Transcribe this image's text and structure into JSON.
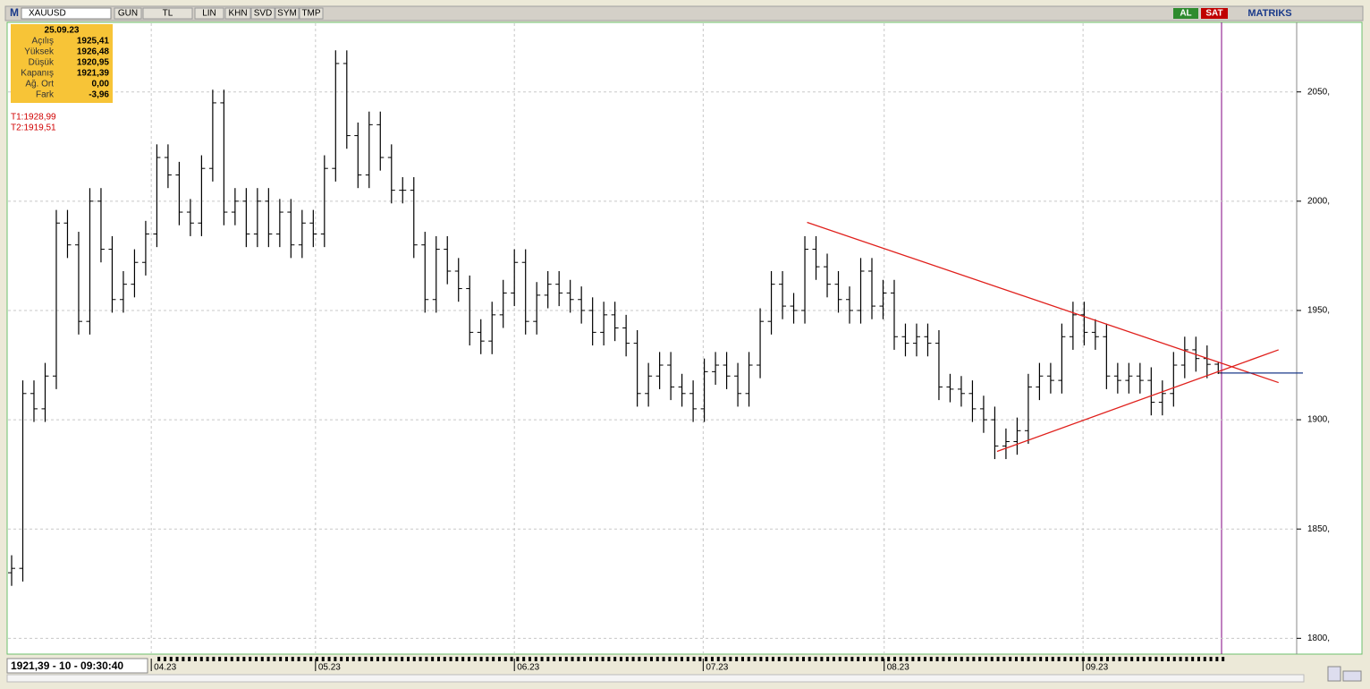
{
  "toolbar": {
    "logo": "M",
    "symbol": "XAUUSD",
    "buttons": [
      "GUN",
      "TL",
      "LIN",
      "KHN",
      "SVD",
      "SYM",
      "TMP"
    ],
    "buy": "AL",
    "sell": "SAT",
    "brand": "MATRIKS"
  },
  "info_box": {
    "date": "25.09.23",
    "rows": [
      {
        "label": "Açılış",
        "value": "1925,41"
      },
      {
        "label": "Yüksek",
        "value": "1926,48"
      },
      {
        "label": "Düşük",
        "value": "1920,95"
      },
      {
        "label": "Kapanış",
        "value": "1921,39"
      },
      {
        "label": "Ağ. Ort",
        "value": "0,00"
      },
      {
        "label": "Fark",
        "value": "-3,96"
      }
    ]
  },
  "trend_labels": [
    "T1:1928,99",
    "T2:1919,51"
  ],
  "status": "1921,39 - 10 - 09:30:40",
  "chart_data": {
    "type": "ohlc",
    "color": "#000000",
    "grid": true,
    "xlim": [
      -0.4,
      115.1
    ],
    "ylim": [
      1794,
      2081
    ],
    "yticks": [
      {
        "value": 1800,
        "label": "1800,"
      },
      {
        "value": 1850,
        "label": "1850,"
      },
      {
        "value": 1900,
        "label": "1900,"
      },
      {
        "value": 1950,
        "label": "1950,"
      },
      {
        "value": 2000,
        "label": "2000,"
      },
      {
        "value": 2050,
        "label": "2050,"
      }
    ],
    "xticks": [
      {
        "value": 12.5,
        "label": "04.23"
      },
      {
        "value": 27.2,
        "label": "05.23"
      },
      {
        "value": 45,
        "label": "06.23"
      },
      {
        "value": 61.9,
        "label": "07.23"
      },
      {
        "value": 78.1,
        "label": "08.23"
      },
      {
        "value": 95.9,
        "label": "09.23"
      }
    ],
    "open": [
      1830,
      1832,
      1912,
      1905,
      1920,
      1990,
      1980,
      1945,
      2000,
      1978,
      1955,
      1962,
      1972,
      1985,
      2020,
      2012,
      1995,
      1990,
      2015,
      2045,
      1995,
      2000,
      1985,
      2000,
      1985,
      1995,
      1980,
      1990,
      1985,
      2015,
      2063,
      2030,
      2012,
      2035,
      2020,
      2005,
      2005,
      1980,
      1955,
      1978,
      1968,
      1960,
      1940,
      1936,
      1948,
      1958,
      1972,
      1945,
      1957,
      1962,
      1958,
      1955,
      1950,
      1940,
      1948,
      1942,
      1935,
      1912,
      1920,
      1925,
      1915,
      1912,
      1905,
      1922,
      1925,
      1920,
      1912,
      1925,
      1945,
      1962,
      1952,
      1950,
      1978,
      1970,
      1962,
      1955,
      1950,
      1968,
      1952,
      1958,
      1938,
      1935,
      1938,
      1935,
      1915,
      1914,
      1912,
      1905,
      1900,
      1888,
      1890,
      1895,
      1915,
      1920,
      1918,
      1938,
      1948,
      1940,
      1938,
      1920,
      1918,
      1920,
      1918,
      1908,
      1912,
      1925,
      1932,
      1928,
      1925.41
    ],
    "high": [
      1838,
      1918,
      1918,
      1926,
      1996,
      1996,
      1986,
      2006,
      2006,
      1984,
      1968,
      1978,
      1991,
      2026,
      2026,
      2018,
      2001,
      2021,
      2051,
      2051,
      2006,
      2006,
      2006,
      2006,
      2001,
      2001,
      1996,
      1996,
      2021,
      2069,
      2069,
      2036,
      2041,
      2041,
      2026,
      2011,
      2011,
      1986,
      1984,
      1984,
      1974,
      1966,
      1946,
      1954,
      1964,
      1978,
      1978,
      1963,
      1968,
      1968,
      1964,
      1961,
      1956,
      1954,
      1954,
      1948,
      1941,
      1926,
      1931,
      1931,
      1921,
      1918,
      1928,
      1931,
      1931,
      1926,
      1931,
      1951,
      1968,
      1968,
      1958,
      1984,
      1984,
      1976,
      1968,
      1961,
      1974,
      1974,
      1964,
      1964,
      1944,
      1944,
      1944,
      1941,
      1921,
      1920,
      1918,
      1911,
      1906,
      1896,
      1901,
      1921,
      1926,
      1926,
      1944,
      1954,
      1954,
      1946,
      1944,
      1926,
      1926,
      1926,
      1924,
      1918,
      1931,
      1938,
      1938,
      1934,
      1926.48
    ],
    "low": [
      1824,
      1826,
      1899,
      1899,
      1914,
      1974,
      1939,
      1939,
      1972,
      1949,
      1949,
      1956,
      1966,
      1979,
      2006,
      1989,
      1984,
      1984,
      2009,
      1989,
      1989,
      1979,
      1979,
      1979,
      1979,
      1974,
      1974,
      1979,
      1979,
      2009,
      2024,
      2006,
      2006,
      2014,
      1999,
      1999,
      1974,
      1949,
      1949,
      1962,
      1954,
      1934,
      1930,
      1930,
      1942,
      1952,
      1939,
      1939,
      1951,
      1952,
      1949,
      1944,
      1934,
      1934,
      1936,
      1929,
      1906,
      1906,
      1914,
      1909,
      1906,
      1899,
      1899,
      1916,
      1914,
      1906,
      1906,
      1919,
      1939,
      1946,
      1944,
      1944,
      1964,
      1956,
      1949,
      1944,
      1944,
      1946,
      1946,
      1932,
      1929,
      1929,
      1929,
      1909,
      1908,
      1906,
      1899,
      1894,
      1882,
      1882,
      1884,
      1889,
      1909,
      1912,
      1912,
      1932,
      1934,
      1932,
      1914,
      1912,
      1912,
      1912,
      1902,
      1902,
      1906,
      1919,
      1922,
      1919,
      1920.95
    ],
    "close": [
      1832,
      1912,
      1905,
      1920,
      1990,
      1980,
      1945,
      2000,
      1978,
      1955,
      1962,
      1972,
      1985,
      2020,
      2012,
      1995,
      1990,
      2015,
      2045,
      1995,
      2000,
      1985,
      2000,
      1985,
      1995,
      1980,
      1990,
      1985,
      2015,
      2063,
      2030,
      2012,
      2035,
      2020,
      2005,
      2005,
      1980,
      1955,
      1978,
      1968,
      1960,
      1940,
      1936,
      1948,
      1958,
      1972,
      1945,
      1957,
      1962,
      1958,
      1955,
      1950,
      1940,
      1948,
      1942,
      1935,
      1912,
      1920,
      1925,
      1915,
      1912,
      1905,
      1922,
      1925,
      1920,
      1912,
      1925,
      1945,
      1962,
      1952,
      1950,
      1978,
      1970,
      1962,
      1955,
      1950,
      1968,
      1952,
      1958,
      1938,
      1935,
      1938,
      1935,
      1915,
      1914,
      1912,
      1905,
      1900,
      1888,
      1890,
      1895,
      1915,
      1920,
      1918,
      1938,
      1948,
      1940,
      1938,
      1920,
      1918,
      1920,
      1918,
      1908,
      1912,
      1925,
      1932,
      1928,
      1925.35,
      1921.39
    ],
    "trendlines": [
      {
        "color": "#e0201c",
        "x": [
          71.2,
          113.4
        ],
        "y": [
          1990.3,
          1917
        ]
      },
      {
        "color": "#e0201c",
        "x": [
          88.2,
          113.4
        ],
        "y": [
          1885.5,
          1932
        ]
      }
    ],
    "price_line_color": "#1a3a8a"
  }
}
